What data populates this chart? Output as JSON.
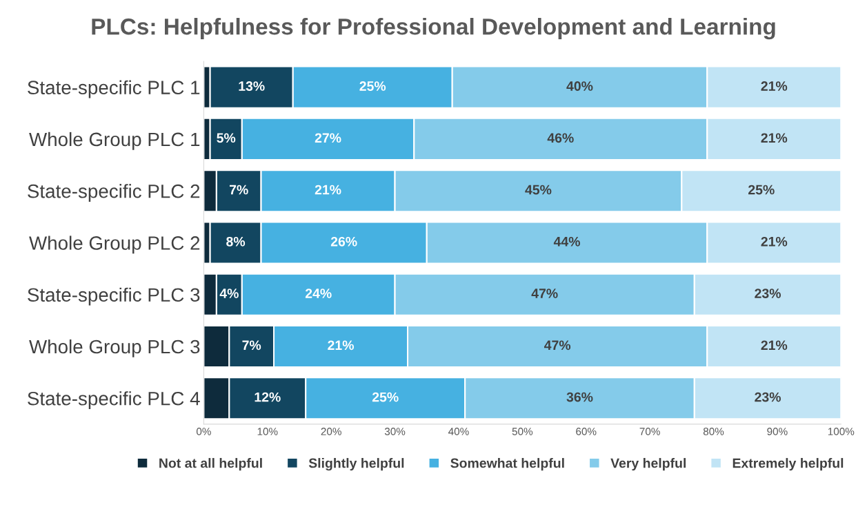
{
  "chart_data": {
    "type": "bar",
    "orientation": "horizontal",
    "stacked": true,
    "title": "PLCs: Helpfulness for Professional Development and Learning",
    "categories": [
      "State-specific PLC 1",
      "Whole Group PLC 1",
      "State-specific PLC 2",
      "Whole Group PLC 2",
      "State-specific PLC 3",
      "Whole Group PLC 3",
      "State-specific PLC 4"
    ],
    "series": [
      {
        "name": "Not at all helpful",
        "color": "#0e2b3c",
        "values": [
          1,
          1,
          2,
          1,
          2,
          4,
          4
        ]
      },
      {
        "name": "Slightly helpful",
        "color": "#124660",
        "values": [
          13,
          5,
          7,
          8,
          4,
          7,
          12
        ],
        "value_labels": [
          "13%",
          "5%",
          "7%",
          "8%",
          "4%",
          "7%",
          "12%"
        ]
      },
      {
        "name": "Somewhat helpful",
        "color": "#46b1e1",
        "values": [
          25,
          27,
          21,
          26,
          24,
          21,
          25
        ],
        "value_labels": [
          "25%",
          "27%",
          "21%",
          "26%",
          "24%",
          "21%",
          "25%"
        ]
      },
      {
        "name": "Very helpful",
        "color": "#84cbea",
        "values": [
          40,
          46,
          45,
          44,
          47,
          47,
          36
        ],
        "value_labels": [
          "40%",
          "46%",
          "45%",
          "44%",
          "47%",
          "47%",
          "36%"
        ]
      },
      {
        "name": "Extremely helpful",
        "color": "#c1e4f5",
        "values": [
          21,
          21,
          25,
          21,
          23,
          21,
          23
        ],
        "value_labels": [
          "21%",
          "21%",
          "25%",
          "21%",
          "23%",
          "21%",
          "23%"
        ]
      }
    ],
    "xlim": [
      0,
      100
    ],
    "xticks": [
      {
        "value": 0,
        "label": "0%"
      },
      {
        "value": 10,
        "label": "10%"
      },
      {
        "value": 20,
        "label": "20%"
      },
      {
        "value": 30,
        "label": "30%"
      },
      {
        "value": 40,
        "label": "40%"
      },
      {
        "value": 50,
        "label": "50%"
      },
      {
        "value": 60,
        "label": "60%"
      },
      {
        "value": 70,
        "label": "70%"
      },
      {
        "value": 80,
        "label": "80%"
      },
      {
        "value": 90,
        "label": "90%"
      },
      {
        "value": 100,
        "label": "100%"
      }
    ],
    "legend": "bottom",
    "grid": false
  }
}
